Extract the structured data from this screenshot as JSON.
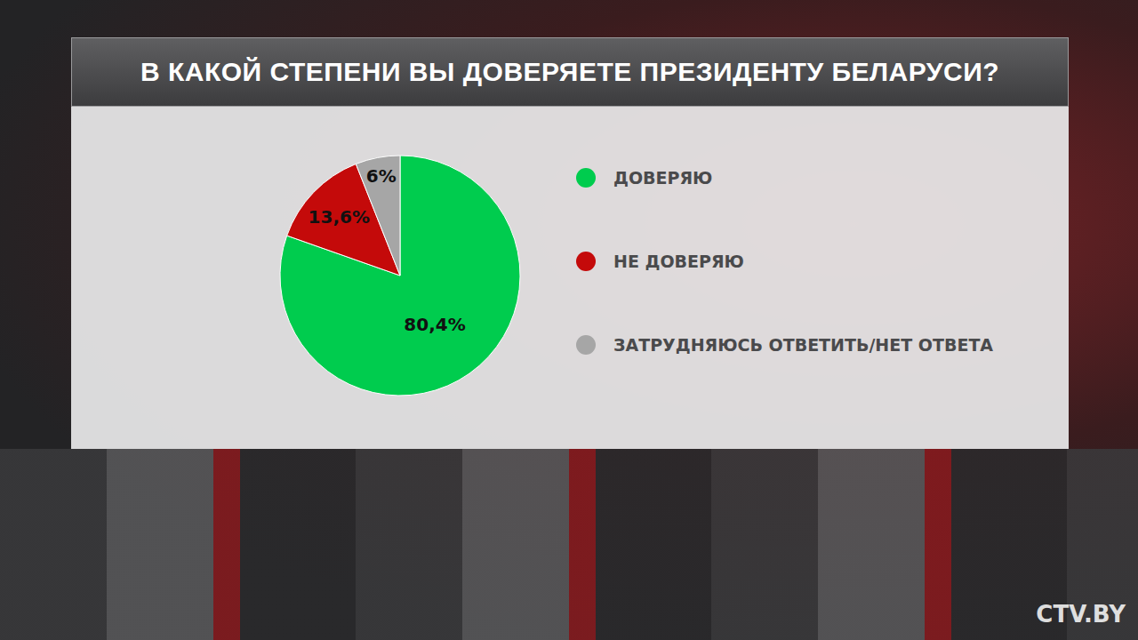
{
  "chart_data": {
    "type": "pie",
    "title": "В КАКОЙ СТЕПЕНИ ВЫ ДОВЕРЯЕТЕ ПРЕЗИДЕНТУ БЕЛАРУСИ?",
    "categories": [
      "ДОВЕРЯЮ",
      "НЕ ДОВЕРЯЮ",
      "ЗАТРУДНЯЮСЬ ОТВЕТИТЬ/НЕТ ОТВЕТА"
    ],
    "values": [
      80.4,
      13.6,
      6
    ],
    "value_labels": [
      "80,4%",
      "13,6%",
      "6%"
    ],
    "colors": [
      "#00cc4e",
      "#c40a0a",
      "#a6a6a6"
    ],
    "data_labels": true,
    "legend": "right",
    "annotations": [
      "CTV.BY"
    ]
  }
}
